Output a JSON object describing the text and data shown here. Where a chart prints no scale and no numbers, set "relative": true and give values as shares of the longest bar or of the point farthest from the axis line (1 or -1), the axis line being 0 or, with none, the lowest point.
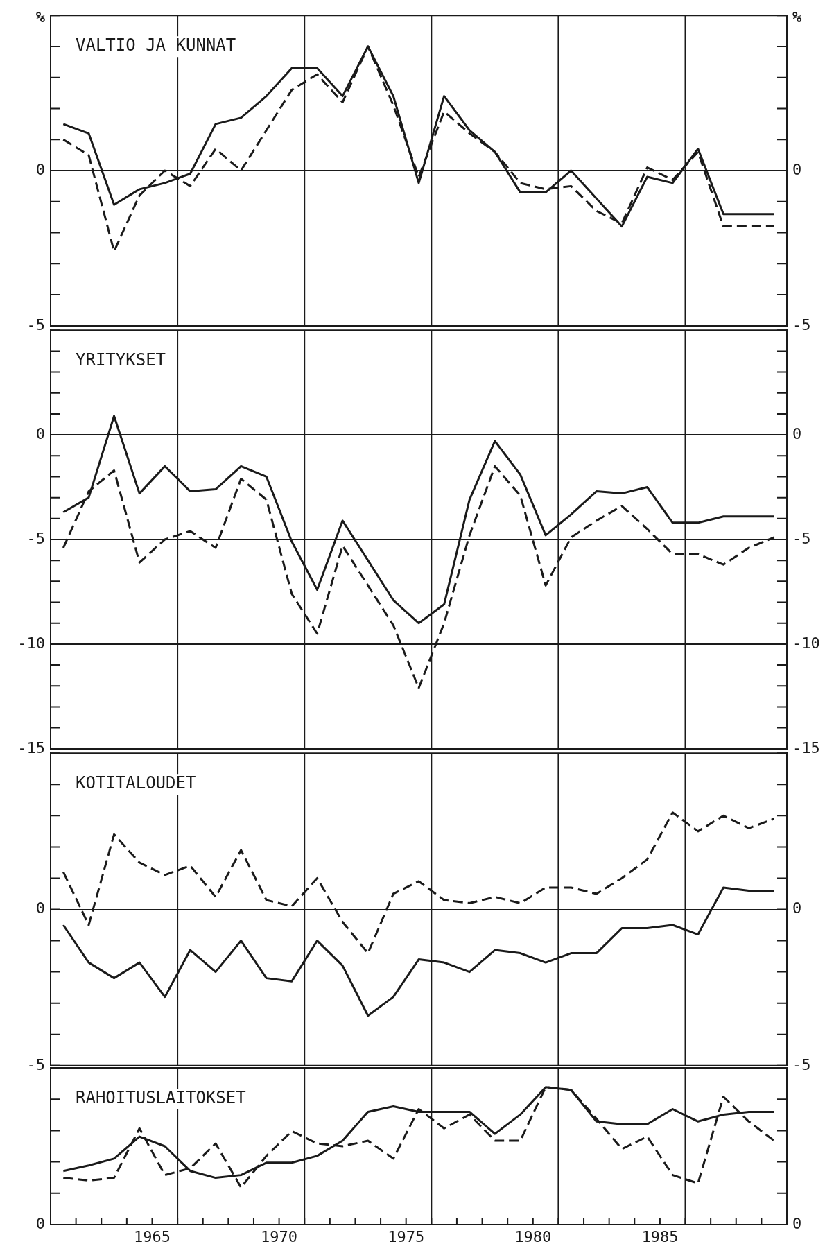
{
  "chart_data": [
    {
      "type": "line",
      "title": "VALTIO JA KUNNAT",
      "ylabel": "%",
      "y2label": "%",
      "tick_labels": "y",
      "grid": "y",
      "x": [
        1961.5,
        1962.5,
        1963.5,
        1964.5,
        1965.5,
        1966.5,
        1967.5,
        1968.5,
        1969.5,
        1970.5,
        1971.5,
        1972.5,
        1973.5,
        1974.5,
        1975.5,
        1976.5,
        1977.5,
        1978.5,
        1979.5,
        1980.5,
        1981.5,
        1982.5,
        1983.5,
        1984.5,
        1985.5,
        1986.5,
        1987.5,
        1988.5,
        1989.5
      ],
      "xlim": [
        1961,
        1990
      ],
      "ylim": [
        -5,
        5
      ],
      "y2lim": [
        -5,
        5
      ],
      "yticks": [
        {
          "value": 5,
          "label": null
        },
        {
          "value": 4,
          "label": null
        },
        {
          "value": 3,
          "label": null
        },
        {
          "value": 2,
          "label": null
        },
        {
          "value": 1,
          "label": null
        },
        0,
        {
          "value": -1,
          "label": null
        },
        {
          "value": -2,
          "label": null
        },
        {
          "value": -3,
          "label": null
        },
        {
          "value": -4,
          "label": null
        },
        -5
      ],
      "y2ticks": [
        {
          "value": 5,
          "label": null
        },
        {
          "value": 4,
          "label": null
        },
        {
          "value": 3,
          "label": null
        },
        {
          "value": 2,
          "label": null
        },
        {
          "value": 1,
          "label": null
        },
        0,
        {
          "value": -1,
          "label": null
        },
        {
          "value": -2,
          "label": null
        },
        {
          "value": -3,
          "label": null
        },
        {
          "value": -4,
          "label": null
        },
        -5
      ],
      "ref_lines": [
        {
          "axis": "x",
          "value": 1966,
          "color": "#1a1a1a"
        },
        {
          "axis": "x",
          "value": 1971,
          "color": "#1a1a1a"
        },
        {
          "axis": "x",
          "value": 1976,
          "color": "#1a1a1a"
        },
        {
          "axis": "x",
          "value": 1981,
          "color": "#1a1a1a"
        },
        {
          "axis": "x",
          "value": 1986,
          "color": "#1a1a1a"
        }
      ],
      "series": [
        {
          "color": "#1a1a1a",
          "line_style": "solid",
          "values": [
            1.5,
            1.2,
            -1.1,
            -0.6,
            -0.4,
            -0.1,
            1.5,
            1.7,
            2.4,
            3.3,
            3.3,
            2.4,
            4.0,
            2.4,
            -0.4,
            2.4,
            1.3,
            0.6,
            -0.7,
            -0.7,
            0.0,
            -0.9,
            -1.8,
            -0.2,
            -0.4,
            0.7,
            -1.4,
            -1.4,
            -1.4
          ]
        },
        {
          "color": "#1a1a1a",
          "line_style": "dashed",
          "values": [
            1.0,
            0.5,
            -2.6,
            -0.8,
            0.0,
            -0.5,
            0.7,
            0.0,
            1.3,
            2.6,
            3.1,
            2.2,
            4.0,
            2.1,
            -0.2,
            1.9,
            1.2,
            0.6,
            -0.4,
            -0.6,
            -0.5,
            -1.3,
            -1.7,
            0.1,
            -0.3,
            0.6,
            -1.8,
            -1.8,
            -1.8
          ]
        }
      ]
    },
    {
      "type": "line",
      "title": "YRITYKSET",
      "tick_labels": "y",
      "grid": "y",
      "x": [
        1961.5,
        1962.5,
        1963.5,
        1964.5,
        1965.5,
        1966.5,
        1967.5,
        1968.5,
        1969.5,
        1970.5,
        1971.5,
        1972.5,
        1973.5,
        1974.5,
        1975.5,
        1976.5,
        1977.5,
        1978.5,
        1979.5,
        1980.5,
        1981.5,
        1982.5,
        1983.5,
        1984.5,
        1985.5,
        1986.5,
        1987.5,
        1988.5,
        1989.5
      ],
      "xlim": [
        1961,
        1990
      ],
      "ylim": [
        -15,
        5
      ],
      "y2lim": [
        -15,
        5
      ],
      "yticks": [
        {
          "value": 5,
          "label": null
        },
        {
          "value": 4,
          "label": null
        },
        {
          "value": 3,
          "label": null
        },
        {
          "value": 2,
          "label": null
        },
        {
          "value": 1,
          "label": null
        },
        0,
        {
          "value": -1,
          "label": null
        },
        {
          "value": -2,
          "label": null
        },
        {
          "value": -3,
          "label": null
        },
        {
          "value": -4,
          "label": null
        },
        -5,
        {
          "value": -6,
          "label": null
        },
        {
          "value": -7,
          "label": null
        },
        {
          "value": -8,
          "label": null
        },
        {
          "value": -9,
          "label": null
        },
        -10,
        {
          "value": -11,
          "label": null
        },
        {
          "value": -12,
          "label": null
        },
        {
          "value": -13,
          "label": null
        },
        {
          "value": -14,
          "label": null
        },
        -15
      ],
      "y2ticks": [
        {
          "value": 5,
          "label": null
        },
        {
          "value": 4,
          "label": null
        },
        {
          "value": 3,
          "label": null
        },
        {
          "value": 2,
          "label": null
        },
        {
          "value": 1,
          "label": null
        },
        0,
        {
          "value": -1,
          "label": null
        },
        {
          "value": -2,
          "label": null
        },
        {
          "value": -3,
          "label": null
        },
        {
          "value": -4,
          "label": null
        },
        -5,
        {
          "value": -6,
          "label": null
        },
        {
          "value": -7,
          "label": null
        },
        {
          "value": -8,
          "label": null
        },
        {
          "value": -9,
          "label": null
        },
        -10,
        {
          "value": -11,
          "label": null
        },
        {
          "value": -12,
          "label": null
        },
        {
          "value": -13,
          "label": null
        },
        {
          "value": -14,
          "label": null
        },
        -15
      ],
      "ref_lines": [
        {
          "axis": "x",
          "value": 1966,
          "color": "#1a1a1a"
        },
        {
          "axis": "x",
          "value": 1971,
          "color": "#1a1a1a"
        },
        {
          "axis": "x",
          "value": 1976,
          "color": "#1a1a1a"
        },
        {
          "axis": "x",
          "value": 1981,
          "color": "#1a1a1a"
        },
        {
          "axis": "x",
          "value": 1986,
          "color": "#1a1a1a"
        }
      ],
      "series": [
        {
          "color": "#1a1a1a",
          "line_style": "solid",
          "values": [
            -3.7,
            -3.0,
            0.9,
            -2.8,
            -1.5,
            -2.7,
            -2.6,
            -1.5,
            -2.0,
            -5.1,
            -7.4,
            -4.1,
            -6.0,
            -7.9,
            -9.0,
            -8.1,
            -3.1,
            -0.3,
            -1.9,
            -4.8,
            -3.8,
            -2.7,
            -2.8,
            -2.5,
            -4.2,
            -4.2,
            -3.9,
            -3.9,
            -3.9
          ]
        },
        {
          "color": "#1a1a1a",
          "line_style": "dashed",
          "values": [
            -5.4,
            -2.7,
            -1.7,
            -6.1,
            -5.0,
            -4.6,
            -5.4,
            -2.1,
            -3.1,
            -7.6,
            -9.5,
            -5.3,
            -7.2,
            -9.1,
            -12.1,
            -9.0,
            -4.8,
            -1.5,
            -2.9,
            -7.2,
            -4.9,
            -4.1,
            -3.4,
            -4.5,
            -5.7,
            -5.7,
            -6.2,
            -5.4,
            -4.9
          ]
        }
      ]
    },
    {
      "type": "line",
      "title": "KOTITALOUDET",
      "tick_labels": "y",
      "grid": "y",
      "x": [
        1961.5,
        1962.5,
        1963.5,
        1964.5,
        1965.5,
        1966.5,
        1967.5,
        1968.5,
        1969.5,
        1970.5,
        1971.5,
        1972.5,
        1973.5,
        1974.5,
        1975.5,
        1976.5,
        1977.5,
        1978.5,
        1979.5,
        1980.5,
        1981.5,
        1982.5,
        1983.5,
        1984.5,
        1985.5,
        1986.5,
        1987.5,
        1988.5,
        1989.5
      ],
      "xlim": [
        1961,
        1990
      ],
      "ylim": [
        -5,
        5
      ],
      "y2lim": [
        -5,
        5
      ],
      "yticks": [
        {
          "value": 5,
          "label": null
        },
        {
          "value": 4,
          "label": null
        },
        {
          "value": 3,
          "label": null
        },
        {
          "value": 2,
          "label": null
        },
        {
          "value": 1,
          "label": null
        },
        0,
        {
          "value": -1,
          "label": null
        },
        {
          "value": -2,
          "label": null
        },
        {
          "value": -3,
          "label": null
        },
        {
          "value": -4,
          "label": null
        },
        -5
      ],
      "y2ticks": [
        {
          "value": 5,
          "label": null
        },
        {
          "value": 4,
          "label": null
        },
        {
          "value": 3,
          "label": null
        },
        {
          "value": 2,
          "label": null
        },
        {
          "value": 1,
          "label": null
        },
        0,
        {
          "value": -1,
          "label": null
        },
        {
          "value": -2,
          "label": null
        },
        {
          "value": -3,
          "label": null
        },
        {
          "value": -4,
          "label": null
        },
        -5
      ],
      "ref_lines": [
        {
          "axis": "x",
          "value": 1966,
          "color": "#1a1a1a"
        },
        {
          "axis": "x",
          "value": 1971,
          "color": "#1a1a1a"
        },
        {
          "axis": "x",
          "value": 1976,
          "color": "#1a1a1a"
        },
        {
          "axis": "x",
          "value": 1981,
          "color": "#1a1a1a"
        },
        {
          "axis": "x",
          "value": 1986,
          "color": "#1a1a1a"
        }
      ],
      "series": [
        {
          "color": "#1a1a1a",
          "line_style": "solid",
          "values": [
            -0.5,
            -1.7,
            -2.2,
            -1.7,
            -2.8,
            -1.3,
            -2.0,
            -1.0,
            -2.2,
            -2.3,
            -1.0,
            -1.8,
            -3.4,
            -2.8,
            -1.6,
            -1.7,
            -2.0,
            -1.3,
            -1.4,
            -1.7,
            -1.4,
            -1.4,
            -0.6,
            -0.6,
            -0.5,
            -0.8,
            0.7,
            0.6,
            0.6
          ]
        },
        {
          "color": "#1a1a1a",
          "line_style": "dashed",
          "values": [
            1.2,
            -0.5,
            2.4,
            1.5,
            1.1,
            1.4,
            0.4,
            1.9,
            0.3,
            0.1,
            1.0,
            -0.4,
            -1.4,
            0.5,
            0.9,
            0.3,
            0.2,
            0.4,
            0.2,
            0.7,
            0.7,
            0.5,
            1.0,
            1.6,
            3.1,
            2.5,
            3.0,
            2.6,
            2.9
          ]
        }
      ]
    },
    {
      "type": "line",
      "title": "RAHOITUSLAITOKSET",
      "relative": true,
      "annotations": [
        "0",
        "0"
      ],
      "x": [
        1961.5,
        1962.5,
        1963.5,
        1964.5,
        1965.5,
        1966.5,
        1967.5,
        1968.5,
        1969.5,
        1970.5,
        1971.5,
        1972.5,
        1973.5,
        1974.5,
        1975.5,
        1976.5,
        1977.5,
        1978.5,
        1979.5,
        1980.5,
        1981.5,
        1982.5,
        1983.5,
        1984.5,
        1985.5,
        1986.5,
        1987.5,
        1988.5,
        1989.5
      ],
      "xlim": [
        1961,
        1990
      ],
      "xticks": [
        {
          "value": 1962,
          "label": null
        },
        {
          "value": 1963,
          "label": null
        },
        {
          "value": 1964,
          "label": null
        },
        1965,
        {
          "value": 1966,
          "label": null
        },
        {
          "value": 1967,
          "label": null
        },
        {
          "value": 1968,
          "label": null
        },
        {
          "value": 1969,
          "label": null
        },
        1970,
        {
          "value": 1971,
          "label": null
        },
        {
          "value": 1972,
          "label": null
        },
        {
          "value": 1973,
          "label": null
        },
        {
          "value": 1974,
          "label": null
        },
        1975,
        {
          "value": 1976,
          "label": null
        },
        {
          "value": 1977,
          "label": null
        },
        {
          "value": 1978,
          "label": null
        },
        {
          "value": 1979,
          "label": null
        },
        1980,
        {
          "value": 1981,
          "label": null
        },
        {
          "value": 1982,
          "label": null
        },
        {
          "value": 1983,
          "label": null
        },
        {
          "value": 1984,
          "label": null
        },
        1985,
        {
          "value": 1986,
          "label": null
        },
        {
          "value": 1987,
          "label": null
        },
        {
          "value": 1988,
          "label": null
        },
        {
          "value": 1989,
          "label": null
        }
      ],
      "ref_lines": [
        {
          "axis": "x",
          "value": 1966,
          "color": "#1a1a1a"
        },
        {
          "axis": "x",
          "value": 1971,
          "color": "#1a1a1a"
        },
        {
          "axis": "x",
          "value": 1976,
          "color": "#1a1a1a"
        },
        {
          "axis": "x",
          "value": 1981,
          "color": "#1a1a1a"
        },
        {
          "axis": "x",
          "value": 1986,
          "color": "#1a1a1a"
        }
      ],
      "series": [
        {
          "color": "#1a1a1a",
          "line_style": "solid",
          "values": [
            0.39,
            0.43,
            0.48,
            0.64,
            0.57,
            0.39,
            0.34,
            0.36,
            0.45,
            0.45,
            0.5,
            0.61,
            0.82,
            0.86,
            0.82,
            0.82,
            0.82,
            0.66,
            0.8,
            1,
            0.98,
            0.75,
            0.73,
            0.73,
            0.84,
            0.75,
            0.8,
            0.82,
            0.82
          ]
        },
        {
          "color": "#1a1a1a",
          "line_style": "dashed",
          "values": [
            0.34,
            0.32,
            0.34,
            0.7,
            0.36,
            0.41,
            0.59,
            0.27,
            0.5,
            0.68,
            0.59,
            0.57,
            0.61,
            0.48,
            0.84,
            0.7,
            0.8,
            0.61,
            0.61,
            1,
            0.98,
            0.77,
            0.55,
            0.64,
            0.36,
            0.3,
            0.93,
            0.75,
            0.61
          ]
        }
      ]
    }
  ]
}
